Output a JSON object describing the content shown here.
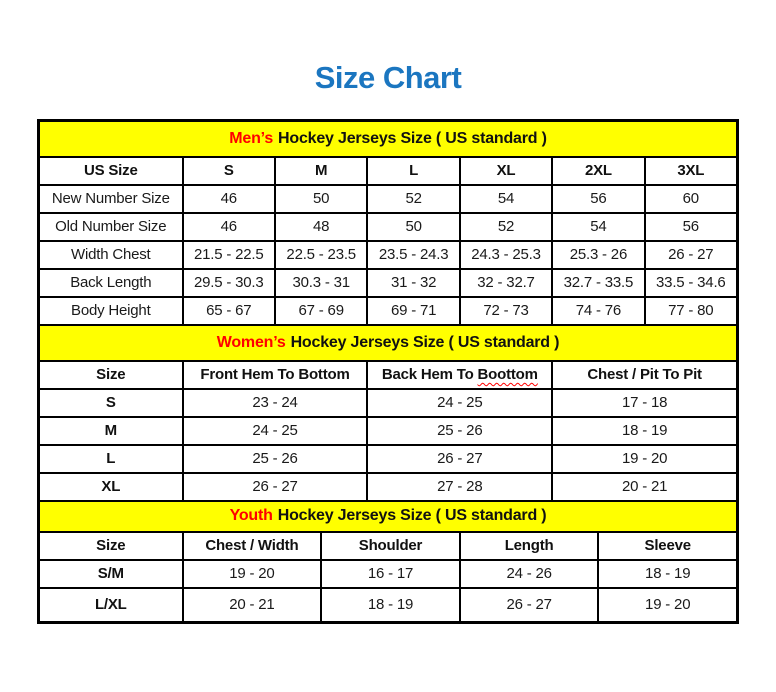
{
  "title": "Size Chart",
  "colors": {
    "title_blue": "#1B76C0",
    "band_yellow": "#FFFF00",
    "accent_red": "#FF0000",
    "border_black": "#000000"
  },
  "chart_data": [
    {
      "type": "table",
      "band_highlight": "Men’s",
      "band_rest": "Hockey Jerseys Size ( US standard )",
      "bold_row_labels": false,
      "col_widths": [
        "20.57%",
        "13.24%",
        "13.24%",
        "13.24%",
        "13.24%",
        "13.24%",
        "13.23%"
      ],
      "columns": [
        "US Size",
        "S",
        "M",
        "L",
        "XL",
        "2XL",
        "3XL"
      ],
      "rows": [
        [
          "New Number Size",
          "46",
          "50",
          "52",
          "54",
          "56",
          "60"
        ],
        [
          "Old Number Size",
          "46",
          "48",
          "50",
          "52",
          "54",
          "56"
        ],
        [
          "Width Chest",
          "21.5 - 22.5",
          "22.5 - 23.5",
          "23.5 - 24.3",
          "24.3 - 25.3",
          "25.3 - 26",
          "26 - 27"
        ],
        [
          "Back Length",
          "29.5 - 30.3",
          "30.3 - 31",
          "31 - 32",
          "32 - 32.7",
          "32.7 - 33.5",
          "33.5 - 34.6"
        ],
        [
          "Body Height",
          "65 - 67",
          "67 - 69",
          "69 - 71",
          "72 - 73",
          "74 - 76",
          "77 - 80"
        ]
      ]
    },
    {
      "type": "table",
      "band_highlight": "Women’s",
      "band_rest": "Hockey Jerseys Size ( US standard )",
      "bold_row_labels": true,
      "col_widths": [
        "20.57%",
        "26.48%",
        "26.48%",
        "26.47%"
      ],
      "columns": [
        "Size",
        "Front Hem To Bottom",
        {
          "pre": "Back Hem To",
          "wavy": "Boottom"
        },
        "Chest / Pit To Pit"
      ],
      "rows": [
        [
          "S",
          "23 - 24",
          "24 - 25",
          "17 - 18"
        ],
        [
          "M",
          "24 - 25",
          "25 - 26",
          "18 - 19"
        ],
        [
          "L",
          "25 - 26",
          "26 - 27",
          "19 - 20"
        ],
        [
          "XL",
          "26 - 27",
          "27 - 28",
          "20 - 21"
        ]
      ]
    },
    {
      "type": "table",
      "band_highlight": "Youth",
      "band_rest": "Hockey Jerseys Size ( US standard )",
      "bold_row_labels": true,
      "col_widths": [
        "20.57%",
        "19.86%",
        "19.86%",
        "19.86%",
        "19.85%"
      ],
      "columns": [
        "Size",
        "Chest / Width",
        "Shoulder",
        "Length",
        "Sleeve"
      ],
      "rows": [
        [
          "S/M",
          "19 - 20",
          "16 - 17",
          "24 - 26",
          "18 - 19"
        ],
        [
          "L/XL",
          "20 - 21",
          "18 - 19",
          "26 - 27",
          "19 - 20"
        ]
      ]
    }
  ]
}
